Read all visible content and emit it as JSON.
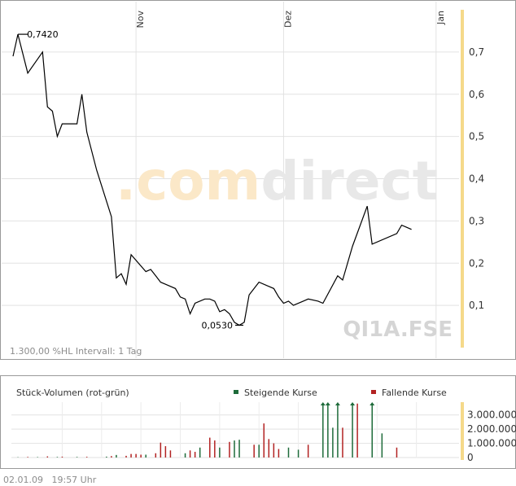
{
  "footer": {
    "date": "02.01.09",
    "time": "19:57 Uhr"
  },
  "brand": {
    "watermark_com": ".com",
    "watermark_direct": "direct",
    "symbol": "QI1A.FSE"
  },
  "price_panel": {
    "meta_text": "1.300,00 %HL Intervall: 1 Tag",
    "high_label": "0,7420",
    "low_label": "0,0530",
    "month_labels": [
      {
        "label": "Nov",
        "day": 25
      },
      {
        "label": "Dez",
        "day": 55
      },
      {
        "label": "Jan",
        "day": 86
      }
    ]
  },
  "volume_panel": {
    "title": "Stück-Volumen (rot-grün)",
    "legend_up": "Steigende Kurse",
    "legend_down": "Fallende Kurse"
  },
  "colors": {
    "price_line": "#000000",
    "up": "#1e6b3a",
    "down": "#b22222",
    "accent_bar": "#f5d98a",
    "grid": "#e2e2e2",
    "watermark_orange": "#fbe8c8",
    "watermark_gray": "#e8e8e8"
  },
  "chart_data": [
    {
      "type": "line",
      "x_unit": "days",
      "y_unit": "EUR",
      "ylim": [
        0.0,
        0.8
      ],
      "yticks": [
        "0,1",
        "0,2",
        "0,3",
        "0,4",
        "0,5",
        "0,6",
        "0,7"
      ],
      "ytick_values": [
        0.1,
        0.2,
        0.3,
        0.4,
        0.5,
        0.6,
        0.7
      ],
      "xlim": [
        0,
        90
      ],
      "annotations": [
        {
          "label": "0,7420",
          "x": 2,
          "y": 0.742
        },
        {
          "label": "0,0530",
          "x": 46,
          "y": 0.053
        }
      ],
      "points": [
        {
          "x": 0,
          "y": 0.69
        },
        {
          "x": 1,
          "y": 0.742
        },
        {
          "x": 3,
          "y": 0.65
        },
        {
          "x": 6,
          "y": 0.7
        },
        {
          "x": 7,
          "y": 0.57
        },
        {
          "x": 8,
          "y": 0.56
        },
        {
          "x": 9,
          "y": 0.5
        },
        {
          "x": 10,
          "y": 0.53
        },
        {
          "x": 13,
          "y": 0.53
        },
        {
          "x": 14,
          "y": 0.6
        },
        {
          "x": 15,
          "y": 0.51
        },
        {
          "x": 17,
          "y": 0.42
        },
        {
          "x": 20,
          "y": 0.31
        },
        {
          "x": 21,
          "y": 0.165
        },
        {
          "x": 22,
          "y": 0.175
        },
        {
          "x": 23,
          "y": 0.15
        },
        {
          "x": 24,
          "y": 0.22
        },
        {
          "x": 27,
          "y": 0.18
        },
        {
          "x": 28,
          "y": 0.185
        },
        {
          "x": 29,
          "y": 0.17
        },
        {
          "x": 30,
          "y": 0.155
        },
        {
          "x": 31,
          "y": 0.15
        },
        {
          "x": 33,
          "y": 0.14
        },
        {
          "x": 34,
          "y": 0.12
        },
        {
          "x": 35,
          "y": 0.115
        },
        {
          "x": 36,
          "y": 0.08
        },
        {
          "x": 37,
          "y": 0.105
        },
        {
          "x": 39,
          "y": 0.115
        },
        {
          "x": 40,
          "y": 0.115
        },
        {
          "x": 41,
          "y": 0.11
        },
        {
          "x": 42,
          "y": 0.085
        },
        {
          "x": 43,
          "y": 0.09
        },
        {
          "x": 44,
          "y": 0.08
        },
        {
          "x": 45,
          "y": 0.06
        },
        {
          "x": 46,
          "y": 0.053
        },
        {
          "x": 47,
          "y": 0.06
        },
        {
          "x": 48,
          "y": 0.125
        },
        {
          "x": 49,
          "y": 0.14
        },
        {
          "x": 50,
          "y": 0.155
        },
        {
          "x": 52,
          "y": 0.145
        },
        {
          "x": 53,
          "y": 0.14
        },
        {
          "x": 54,
          "y": 0.12
        },
        {
          "x": 55,
          "y": 0.105
        },
        {
          "x": 56,
          "y": 0.11
        },
        {
          "x": 57,
          "y": 0.1
        },
        {
          "x": 59,
          "y": 0.11
        },
        {
          "x": 60,
          "y": 0.115
        },
        {
          "x": 62,
          "y": 0.11
        },
        {
          "x": 63,
          "y": 0.105
        },
        {
          "x": 66,
          "y": 0.17
        },
        {
          "x": 67,
          "y": 0.16
        },
        {
          "x": 69,
          "y": 0.24
        },
        {
          "x": 72,
          "y": 0.335
        },
        {
          "x": 73,
          "y": 0.245
        },
        {
          "x": 78,
          "y": 0.27
        },
        {
          "x": 79,
          "y": 0.29
        },
        {
          "x": 80,
          "y": 0.285
        },
        {
          "x": 81,
          "y": 0.28
        }
      ]
    },
    {
      "type": "bar",
      "x_unit": "days",
      "ylim": [
        0,
        3900000
      ],
      "yticks": [
        "0",
        "1.000.000",
        "2.000.000",
        "3.000.000"
      ],
      "ytick_values": [
        0,
        1000000,
        2000000,
        3000000
      ],
      "series": [
        {
          "name": "Steigende Kurse",
          "points": [
            {
              "x": 1,
              "y": 20000
            },
            {
              "x": 5,
              "y": 30000
            },
            {
              "x": 9,
              "y": 40000
            },
            {
              "x": 13,
              "y": 40000
            },
            {
              "x": 19,
              "y": 60000
            },
            {
              "x": 21,
              "y": 180000
            },
            {
              "x": 27,
              "y": 200000
            },
            {
              "x": 35,
              "y": 300000
            },
            {
              "x": 38,
              "y": 700000
            },
            {
              "x": 42,
              "y": 700000
            },
            {
              "x": 45,
              "y": 1200000
            },
            {
              "x": 46,
              "y": 1250000
            },
            {
              "x": 50,
              "y": 900000
            },
            {
              "x": 56,
              "y": 700000
            },
            {
              "x": 58,
              "y": 550000
            },
            {
              "x": 63,
              "y": 3800000
            },
            {
              "x": 64,
              "y": 3800000
            },
            {
              "x": 65,
              "y": 2100000
            },
            {
              "x": 66,
              "y": 3800000
            },
            {
              "x": 69,
              "y": 3800000
            },
            {
              "x": 73,
              "y": 3700000
            },
            {
              "x": 75,
              "y": 1700000
            }
          ]
        },
        {
          "name": "Fallende Kurse",
          "points": [
            {
              "x": 3,
              "y": 40000
            },
            {
              "x": 7,
              "y": 80000
            },
            {
              "x": 10,
              "y": 60000
            },
            {
              "x": 15,
              "y": 50000
            },
            {
              "x": 20,
              "y": 100000
            },
            {
              "x": 23,
              "y": 120000
            },
            {
              "x": 24,
              "y": 250000
            },
            {
              "x": 25,
              "y": 250000
            },
            {
              "x": 26,
              "y": 200000
            },
            {
              "x": 29,
              "y": 300000
            },
            {
              "x": 30,
              "y": 1050000
            },
            {
              "x": 31,
              "y": 800000
            },
            {
              "x": 32,
              "y": 500000
            },
            {
              "x": 36,
              "y": 500000
            },
            {
              "x": 37,
              "y": 400000
            },
            {
              "x": 40,
              "y": 1400000
            },
            {
              "x": 41,
              "y": 1200000
            },
            {
              "x": 44,
              "y": 1100000
            },
            {
              "x": 49,
              "y": 900000
            },
            {
              "x": 51,
              "y": 2400000
            },
            {
              "x": 52,
              "y": 1300000
            },
            {
              "x": 53,
              "y": 1000000
            },
            {
              "x": 54,
              "y": 600000
            },
            {
              "x": 60,
              "y": 900000
            },
            {
              "x": 67,
              "y": 2100000
            },
            {
              "x": 70,
              "y": 3800000
            },
            {
              "x": 78,
              "y": 700000
            }
          ]
        }
      ]
    }
  ]
}
